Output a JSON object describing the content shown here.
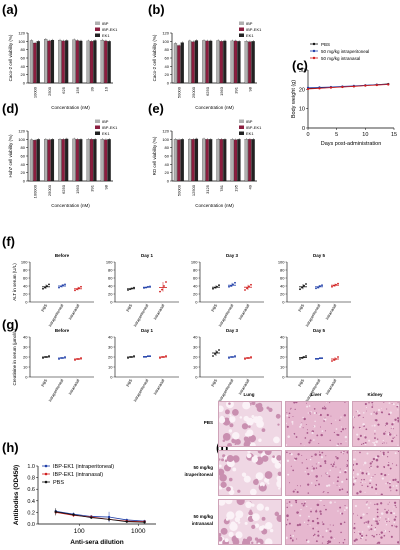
{
  "panel_labels": [
    "(a)",
    "(b)",
    "(c)",
    "(d)",
    "(e)",
    "(f)",
    "(g)",
    "(h)",
    "(i)"
  ],
  "colors": {
    "IBP": "#b0b0b0",
    "IBP-EK1": "#8b1e3f",
    "EK1": "#222222",
    "PBS": "#111111",
    "ip": "#1f3ea8",
    "in": "#d11c1c"
  },
  "viability_legend": [
    "IBP",
    "IBP-EK1",
    "EK1"
  ],
  "chart_data": [
    {
      "id": "a",
      "type": "bar",
      "ylabel": "Caco-2 cell viability (%)",
      "xlabel": "Concentration (nM)",
      "categories": [
        "10000",
        "2500",
        "625",
        "156",
        "39",
        "10"
      ],
      "yticks": [
        0,
        20,
        40,
        60,
        80,
        100,
        120
      ],
      "ylim": [
        0,
        120
      ],
      "series": [
        {
          "name": "IBP",
          "values": [
            102,
            105,
            103,
            104,
            101,
            103
          ]
        },
        {
          "name": "IBP-EK1",
          "values": [
            96,
            101,
            101,
            102,
            100,
            101
          ]
        },
        {
          "name": "EK1",
          "values": [
            100,
            103,
            102,
            101,
            102,
            100
          ]
        }
      ]
    },
    {
      "id": "b",
      "type": "bar",
      "ylabel": "Caco-2 cell viability (%)",
      "xlabel": "Concentration (nM)",
      "categories": [
        "50000",
        "25000",
        "6250",
        "1563",
        "391",
        "98"
      ],
      "yticks": [
        0,
        20,
        40,
        60,
        80,
        100,
        120
      ],
      "ylim": [
        0,
        120
      ],
      "series": [
        {
          "name": "IBP",
          "values": [
            95,
            101,
            102,
            102,
            101,
            100
          ]
        },
        {
          "name": "IBP-EK1",
          "values": [
            90,
            99,
            101,
            100,
            101,
            99
          ]
        },
        {
          "name": "EK1",
          "values": [
            97,
            102,
            101,
            101,
            100,
            100
          ]
        }
      ]
    },
    {
      "id": "c",
      "type": "bar",
      "ylabel": "Huh7 cell viability (%)",
      "xlabel": "Concentration (nM)",
      "categories": [
        "100000",
        "25000",
        "6250",
        "1563",
        "391",
        "98"
      ],
      "yticks": [
        0,
        20,
        40,
        60,
        80,
        100,
        120
      ],
      "ylim": [
        0,
        120
      ],
      "series": [
        {
          "name": "IBP",
          "values": [
            99,
            100,
            100,
            101,
            100,
            100
          ]
        },
        {
          "name": "IBP-EK1",
          "values": [
            98,
            99,
            100,
            100,
            100,
            99
          ]
        },
        {
          "name": "EK1",
          "values": [
            100,
            100,
            101,
            100,
            100,
            100
          ]
        }
      ]
    },
    {
      "id": "d",
      "type": "bar",
      "ylabel": "RD cell viability (%)",
      "xlabel": "Concentration (nM)",
      "categories": [
        "50000",
        "12500",
        "3125",
        "781",
        "195",
        "49"
      ],
      "yticks": [
        0,
        20,
        40,
        60,
        80,
        100,
        120
      ],
      "ylim": [
        0,
        120
      ],
      "series": [
        {
          "name": "IBP",
          "values": [
            100,
            100,
            101,
            100,
            100,
            100
          ]
        },
        {
          "name": "IBP-EK1",
          "values": [
            99,
            100,
            100,
            100,
            99,
            100
          ]
        },
        {
          "name": "EK1",
          "values": [
            100,
            101,
            100,
            100,
            100,
            100
          ]
        }
      ]
    },
    {
      "id": "e",
      "type": "line",
      "ylabel": "Body weight (g)",
      "xlabel": "Days post-administration",
      "xlim": [
        0,
        15
      ],
      "xticks": [
        0,
        5,
        10,
        15
      ],
      "ylim": [
        0,
        30
      ],
      "yticks": [
        0,
        10,
        20,
        30
      ],
      "series": [
        {
          "name": "PBS",
          "x": [
            0,
            2,
            4,
            6,
            8,
            10,
            12,
            14
          ],
          "y": [
            20.4,
            20.7,
            21.0,
            21.3,
            21.6,
            22.0,
            22.4,
            22.8
          ]
        },
        {
          "name": "50 mg/kg intraperitoneal",
          "x": [
            0,
            2,
            4,
            6,
            8,
            10,
            12,
            14
          ],
          "y": [
            20.8,
            21.0,
            21.2,
            21.5,
            21.8,
            22.1,
            22.4,
            22.6
          ]
        },
        {
          "name": "50 mg/kg intranasal",
          "x": [
            0,
            2,
            4,
            6,
            8,
            10,
            12,
            14
          ],
          "y": [
            20.2,
            20.5,
            20.9,
            21.2,
            21.5,
            21.9,
            22.2,
            22.5
          ]
        }
      ]
    },
    {
      "id": "f",
      "type": "scatter",
      "ylabel": "ALT in serum (U/L)",
      "groups": [
        "PBS",
        "intraperitoneal",
        "intranasal"
      ],
      "ylim": [
        0,
        100
      ],
      "yticks": [
        0,
        20,
        40,
        60,
        80,
        100
      ],
      "subplots": [
        {
          "title": "Before",
          "means": [
            38,
            40,
            33
          ],
          "points": [
            [
              33,
              36,
              40,
              44
            ],
            [
              36,
              39,
              42,
              44
            ],
            [
              29,
              32,
              35,
              38
            ]
          ]
        },
        {
          "title": "Day 1",
          "means": [
            33,
            37,
            36
          ],
          "points": [
            [
              30,
              32,
              34,
              36
            ],
            [
              35,
              36,
              38,
              39
            ],
            [
              26,
              31,
              40,
              50
            ]
          ]
        },
        {
          "title": "Day 3",
          "means": [
            37,
            42,
            37
          ],
          "points": [
            [
              33,
              36,
              38,
              42
            ],
            [
              38,
              40,
              44,
              48
            ],
            [
              30,
              34,
              39,
              43
            ]
          ]
        },
        {
          "title": "Day 5",
          "means": [
            38,
            38,
            42
          ],
          "points": [
            [
              32,
              36,
              41,
              45
            ],
            [
              34,
              36,
              40,
              42
            ],
            [
              38,
              41,
              43,
              46
            ]
          ]
        }
      ]
    },
    {
      "id": "g",
      "type": "scatter",
      "ylabel": "Creatinine in serum (μmol/L)",
      "groups": [
        "PBS",
        "intraperitoneal",
        "intranasal"
      ],
      "ylim": [
        0,
        40
      ],
      "yticks": [
        0,
        10,
        20,
        30,
        40
      ],
      "subplots": [
        {
          "title": "Before",
          "means": [
            20,
            19,
            18
          ],
          "points": [
            [
              19,
              20,
              20,
              21
            ],
            [
              18,
              19,
              19,
              20
            ],
            [
              17,
              18,
              18,
              19
            ]
          ]
        },
        {
          "title": "Day 1",
          "means": [
            20,
            20.5,
            20
          ],
          "points": [
            [
              19,
              20,
              20,
              21
            ],
            [
              20,
              20,
              21,
              21
            ],
            [
              19,
              20,
              20,
              21
            ]
          ]
        },
        {
          "title": "Day 3",
          "means": [
            24,
            20,
            19
          ],
          "points": [
            [
              21,
              23,
              25,
              27
            ],
            [
              19,
              20,
              20,
              21
            ],
            [
              18,
              19,
              19,
              20
            ]
          ]
        },
        {
          "title": "Day 5",
          "means": [
            19.5,
            18.5,
            18
          ],
          "points": [
            [
              18,
              19,
              20,
              21
            ],
            [
              18,
              18,
              19,
              19
            ],
            [
              16,
              17,
              18,
              20
            ]
          ]
        }
      ]
    },
    {
      "id": "h",
      "type": "line",
      "ylabel": "Antibodies (OD450)",
      "xlabel": "Anti-sera dilution",
      "xscale": "log",
      "xlim": [
        20,
        2000
      ],
      "xticks": [
        100,
        1000
      ],
      "ylim": [
        0,
        1.0
      ],
      "yticks": [
        0.0,
        0.2,
        0.4,
        0.6,
        0.8,
        1.0
      ],
      "series": [
        {
          "name": "IBP-EK1 (intraperitoneal)",
          "x": [
            40,
            80,
            160,
            320,
            640,
            1280
          ],
          "y": [
            0.22,
            0.17,
            0.13,
            0.12,
            0.07,
            0.05
          ],
          "err": [
            0.05,
            0.03,
            0.02,
            0.09,
            0.02,
            0.02
          ]
        },
        {
          "name": "IBP-EK1 (intranasal)",
          "x": [
            40,
            80,
            160,
            320,
            640,
            1280
          ],
          "y": [
            0.2,
            0.15,
            0.12,
            0.08,
            0.05,
            0.04
          ],
          "err": [
            0.05,
            0.03,
            0.03,
            0.02,
            0.02,
            0.02
          ]
        },
        {
          "name": "PBS",
          "x": [
            40,
            80,
            160,
            320,
            640,
            1280
          ],
          "y": [
            0.21,
            0.16,
            0.11,
            0.08,
            0.04,
            0.03
          ],
          "err": [
            0.06,
            0.02,
            0.02,
            0.03,
            0.02,
            0.01
          ]
        }
      ]
    }
  ],
  "histology": {
    "columns": [
      "Lung",
      "Liver",
      "Kidney"
    ],
    "rows": [
      "PBS",
      "50 mg/kg itraperitoneal",
      "50 mg/kg intranasal"
    ]
  }
}
